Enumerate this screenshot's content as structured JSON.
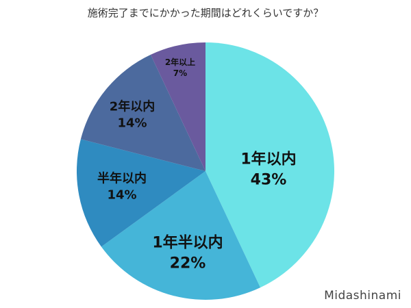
{
  "title": "施術完了までにかかった期間はどれくらいですか？",
  "watermark": "Midashinami",
  "slices": [
    {
      "label": "1年以内",
      "pct": "43%",
      "color": "#6CE3E7"
    },
    {
      "label": "1年半以内",
      "pct": "22%",
      "color": "#45B5D8"
    },
    {
      "label": "半年以内",
      "pct": "14%",
      "color": "#2F8BC0"
    },
    {
      "label": "2年以内",
      "pct": "14%",
      "color": "#4C6A9E"
    },
    {
      "label": "2年以上",
      "pct": "7%",
      "color": "#6A5A9E"
    }
  ],
  "chart_data": {
    "type": "pie",
    "title": "施術完了までにかかった期間はどれくらいですか？",
    "categories": [
      "1年以内",
      "1年半以内",
      "半年以内",
      "2年以内",
      "2年以上"
    ],
    "values": [
      43,
      22,
      14,
      14,
      7
    ],
    "unit": "%",
    "start_angle": "12 o'clock, clockwise",
    "colors": [
      "#6CE3E7",
      "#45B5D8",
      "#2F8BC0",
      "#4C6A9E",
      "#6A5A9E"
    ],
    "legend": "none (labels inside slices)",
    "annotation": "Midashinami"
  }
}
